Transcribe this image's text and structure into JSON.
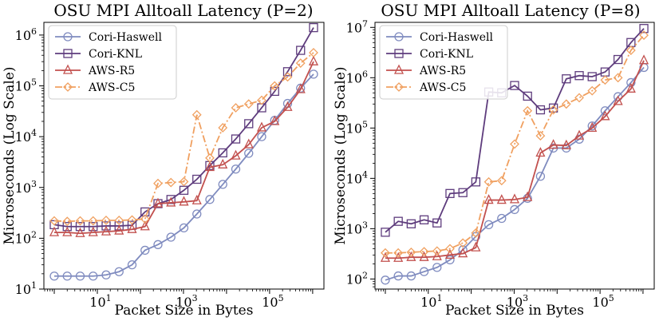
{
  "chart_data": [
    {
      "type": "line",
      "title": "OSU MPI Alltoall Latency (P=2)",
      "xlabel": "Packet Size in Bytes",
      "ylabel": "Microseconds (Log Scale)",
      "xscale": "log2",
      "yscale": "log10",
      "xlim_log2": [
        -0.8,
        20.8
      ],
      "ylim_log10": [
        1,
        6.25
      ],
      "xticks": [
        {
          "exp": 1,
          "base": "10"
        },
        {
          "exp": 3,
          "base": "10"
        },
        {
          "exp": 5,
          "base": "10"
        }
      ],
      "yticks": [
        {
          "exp": 1,
          "base": "10"
        },
        {
          "exp": 2,
          "base": "10"
        },
        {
          "exp": 3,
          "base": "10"
        },
        {
          "exp": 4,
          "base": "10"
        },
        {
          "exp": 5,
          "base": "10"
        },
        {
          "exp": 6,
          "base": "10"
        }
      ],
      "legend_position": "top-left",
      "x": [
        1,
        2,
        4,
        8,
        16,
        32,
        64,
        128,
        256,
        512,
        1024,
        2048,
        4096,
        8192,
        16384,
        32768,
        65536,
        131072,
        262144,
        524288,
        1048576
      ],
      "series": [
        {
          "name": "Cori-Haswell",
          "color": "#7f8bbf",
          "marker": "circle",
          "dash": "solid",
          "values": [
            18,
            18,
            18,
            18,
            19,
            22,
            30,
            58,
            75,
            105,
            160,
            300,
            580,
            1150,
            2300,
            4700,
            10000,
            21000,
            45000,
            90000,
            170000
          ]
        },
        {
          "name": "Cori-KNL",
          "color": "#5e3c7d",
          "marker": "square",
          "dash": "solid",
          "values": [
            185,
            170,
            170,
            170,
            175,
            175,
            180,
            330,
            480,
            580,
            880,
            1450,
            2700,
            4800,
            9000,
            18000,
            37000,
            78000,
            190000,
            500000,
            1400000
          ]
        },
        {
          "name": "AWS-R5",
          "color": "#c2504e",
          "marker": "triangle",
          "dash": "solid",
          "values": [
            130,
            130,
            125,
            130,
            135,
            140,
            150,
            170,
            480,
            500,
            520,
            550,
            2500,
            2800,
            4200,
            7000,
            15000,
            20000,
            38000,
            85000,
            300000
          ]
        },
        {
          "name": "AWS-C5",
          "color": "#f0a060",
          "marker": "diamond",
          "dash": "dashdot",
          "values": [
            220,
            215,
            220,
            220,
            225,
            225,
            230,
            240,
            1200,
            1250,
            1300,
            27000,
            3800,
            15000,
            37000,
            44000,
            52000,
            100000,
            150000,
            280000,
            450000
          ]
        }
      ]
    },
    {
      "type": "line",
      "title": "OSU MPI Alltoall Latency (P=8)",
      "xlabel": "Packet Size in Bytes",
      "ylabel": "Microseconds (Log Scale)",
      "xscale": "log2",
      "yscale": "log10",
      "xlim_log2": [
        -0.8,
        20.8
      ],
      "ylim_log10": [
        1.8,
        7.1
      ],
      "xticks": [
        {
          "exp": 1,
          "base": "10"
        },
        {
          "exp": 3,
          "base": "10"
        },
        {
          "exp": 5,
          "base": "10"
        }
      ],
      "yticks": [
        {
          "exp": 2,
          "base": "10"
        },
        {
          "exp": 3,
          "base": "10"
        },
        {
          "exp": 4,
          "base": "10"
        },
        {
          "exp": 5,
          "base": "10"
        },
        {
          "exp": 6,
          "base": "10"
        },
        {
          "exp": 7,
          "base": "10"
        }
      ],
      "legend_position": "top-left",
      "x": [
        1,
        2,
        4,
        8,
        16,
        32,
        64,
        128,
        256,
        512,
        1024,
        2048,
        4096,
        8192,
        16384,
        32768,
        65536,
        131072,
        262144,
        524288,
        1048576
      ],
      "series": [
        {
          "name": "Cori-Haswell",
          "color": "#7f8bbf",
          "marker": "circle",
          "dash": "solid",
          "values": [
            95,
            115,
            115,
            140,
            170,
            240,
            380,
            700,
            1200,
            1600,
            2400,
            4000,
            11000,
            40000,
            40000,
            60000,
            110000,
            220000,
            420000,
            800000,
            1600000
          ]
        },
        {
          "name": "Cori-KNL",
          "color": "#5e3c7d",
          "marker": "square",
          "dash": "solid",
          "values": [
            850,
            1400,
            1250,
            1500,
            1300,
            5000,
            5200,
            8500,
            520000,
            500000,
            700000,
            430000,
            230000,
            250000,
            950000,
            1100000,
            1050000,
            1300000,
            2300000,
            5000000,
            9500000
          ]
        },
        {
          "name": "AWS-R5",
          "color": "#c2504e",
          "marker": "triangle",
          "dash": "solid",
          "values": [
            260,
            260,
            270,
            270,
            280,
            300,
            320,
            420,
            3700,
            3700,
            3800,
            4200,
            32000,
            46000,
            45000,
            70000,
            100000,
            170000,
            340000,
            600000,
            2200000
          ]
        },
        {
          "name": "AWS-C5",
          "color": "#f0a060",
          "marker": "diamond",
          "dash": "dashdot",
          "values": [
            330,
            330,
            340,
            350,
            360,
            400,
            520,
            820,
            8500,
            9000,
            48000,
            220000,
            70000,
            230000,
            300000,
            400000,
            550000,
            900000,
            1000000,
            3500000,
            7000000
          ]
        }
      ]
    }
  ]
}
